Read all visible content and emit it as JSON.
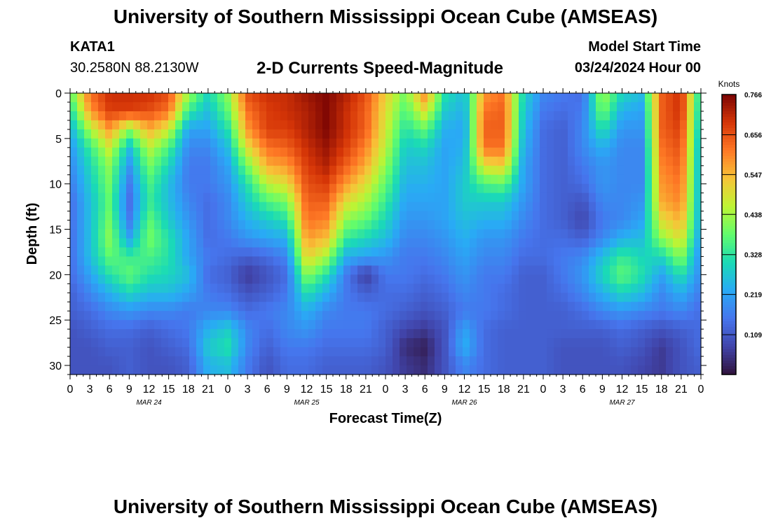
{
  "header": {
    "title": "University of Southern Mississippi Ocean Cube (AMSEAS)",
    "station_name": "KATA1",
    "station_coords": "30.2580N  88.2130W",
    "chart_title": "2-D Currents Speed-Magnitude",
    "start_label": "Model Start Time",
    "start_value": "03/24/2024 Hour 00"
  },
  "footer": {
    "title": "University of Southern Mississippi Ocean Cube (AMSEAS)"
  },
  "chart_data": {
    "type": "heatmap",
    "title": "2-D Currents Speed-Magnitude",
    "xlabel": "Forecast Time(Z)",
    "ylabel": "Depth (ft)",
    "x_range_hours": [
      0,
      96
    ],
    "x_tick_step_hours": 3,
    "x_tick_labels": [
      "0",
      "3",
      "6",
      "9",
      "12",
      "15",
      "18",
      "21",
      "0",
      "3",
      "6",
      "9",
      "12",
      "15",
      "18",
      "21",
      "0",
      "3",
      "6",
      "9",
      "12",
      "15",
      "18",
      "21",
      "0",
      "3",
      "6",
      "9",
      "12",
      "15",
      "18",
      "21",
      "0"
    ],
    "date_labels": [
      {
        "label": "MAR 24",
        "hour": 12
      },
      {
        "label": "MAR 25",
        "hour": 36
      },
      {
        "label": "MAR 26",
        "hour": 60
      },
      {
        "label": "MAR 27",
        "hour": 84
      }
    ],
    "ylim": [
      0,
      31
    ],
    "y_inverted": true,
    "y_tick_labels": [
      "0",
      "5",
      "10",
      "15",
      "20",
      "25",
      "30"
    ],
    "y_ticks": [
      0,
      5,
      10,
      15,
      20,
      25,
      30
    ],
    "colorbar": {
      "unit": "Knots",
      "ticks": [
        "0.766",
        "0.656",
        "0.547",
        "0.438",
        "0.328",
        "0.219",
        "0.109"
      ],
      "range": [
        0.0,
        0.766
      ],
      "colormap": "turbo"
    },
    "depths_ft": [
      0,
      2,
      4,
      6,
      8,
      10,
      12,
      14,
      16,
      18,
      20,
      22,
      24,
      26,
      28,
      30
    ],
    "hours": [
      0,
      3,
      6,
      9,
      12,
      15,
      18,
      21,
      24,
      27,
      30,
      33,
      36,
      39,
      42,
      45,
      48,
      51,
      54,
      57,
      60,
      63,
      66,
      69,
      72,
      75,
      78,
      81,
      84,
      87,
      90,
      93,
      96
    ],
    "speed_knots": [
      [
        0.38,
        0.62,
        0.7,
        0.7,
        0.7,
        0.66,
        0.44,
        0.3,
        0.42,
        0.66,
        0.7,
        0.7,
        0.74,
        0.76,
        0.72,
        0.66,
        0.52,
        0.4,
        0.6,
        0.32,
        0.26,
        0.58,
        0.62,
        0.3,
        0.18,
        0.16,
        0.14,
        0.44,
        0.3,
        0.26,
        0.64,
        0.7,
        0.28
      ],
      [
        0.3,
        0.58,
        0.68,
        0.68,
        0.66,
        0.62,
        0.34,
        0.26,
        0.38,
        0.62,
        0.68,
        0.7,
        0.72,
        0.76,
        0.7,
        0.64,
        0.5,
        0.36,
        0.5,
        0.28,
        0.24,
        0.62,
        0.64,
        0.28,
        0.16,
        0.14,
        0.16,
        0.4,
        0.24,
        0.22,
        0.64,
        0.7,
        0.26
      ],
      [
        0.24,
        0.44,
        0.58,
        0.42,
        0.56,
        0.48,
        0.22,
        0.22,
        0.32,
        0.58,
        0.68,
        0.68,
        0.72,
        0.76,
        0.7,
        0.64,
        0.48,
        0.32,
        0.38,
        0.24,
        0.22,
        0.64,
        0.64,
        0.26,
        0.14,
        0.12,
        0.18,
        0.32,
        0.2,
        0.2,
        0.64,
        0.68,
        0.24
      ],
      [
        0.2,
        0.34,
        0.48,
        0.26,
        0.46,
        0.36,
        0.18,
        0.18,
        0.26,
        0.5,
        0.62,
        0.64,
        0.7,
        0.74,
        0.68,
        0.6,
        0.46,
        0.28,
        0.3,
        0.22,
        0.24,
        0.62,
        0.62,
        0.24,
        0.14,
        0.12,
        0.18,
        0.24,
        0.18,
        0.18,
        0.62,
        0.66,
        0.22
      ],
      [
        0.18,
        0.3,
        0.42,
        0.2,
        0.4,
        0.3,
        0.16,
        0.16,
        0.22,
        0.4,
        0.56,
        0.58,
        0.68,
        0.72,
        0.64,
        0.56,
        0.42,
        0.26,
        0.26,
        0.22,
        0.26,
        0.5,
        0.52,
        0.22,
        0.14,
        0.12,
        0.16,
        0.2,
        0.18,
        0.18,
        0.6,
        0.64,
        0.22
      ],
      [
        0.16,
        0.28,
        0.4,
        0.16,
        0.36,
        0.26,
        0.16,
        0.16,
        0.2,
        0.32,
        0.46,
        0.5,
        0.66,
        0.68,
        0.58,
        0.5,
        0.38,
        0.24,
        0.24,
        0.22,
        0.28,
        0.36,
        0.38,
        0.22,
        0.14,
        0.12,
        0.14,
        0.2,
        0.18,
        0.18,
        0.58,
        0.62,
        0.22
      ],
      [
        0.14,
        0.26,
        0.38,
        0.14,
        0.34,
        0.26,
        0.18,
        0.14,
        0.18,
        0.28,
        0.36,
        0.4,
        0.64,
        0.64,
        0.5,
        0.44,
        0.34,
        0.22,
        0.22,
        0.22,
        0.28,
        0.28,
        0.28,
        0.2,
        0.14,
        0.12,
        0.1,
        0.18,
        0.18,
        0.2,
        0.56,
        0.6,
        0.22
      ],
      [
        0.14,
        0.26,
        0.4,
        0.16,
        0.38,
        0.28,
        0.2,
        0.14,
        0.18,
        0.24,
        0.28,
        0.32,
        0.62,
        0.6,
        0.42,
        0.38,
        0.3,
        0.2,
        0.2,
        0.22,
        0.26,
        0.24,
        0.24,
        0.18,
        0.14,
        0.12,
        0.08,
        0.16,
        0.18,
        0.22,
        0.5,
        0.56,
        0.22
      ],
      [
        0.14,
        0.26,
        0.42,
        0.22,
        0.4,
        0.32,
        0.22,
        0.14,
        0.16,
        0.2,
        0.22,
        0.24,
        0.58,
        0.54,
        0.34,
        0.3,
        0.26,
        0.18,
        0.18,
        0.2,
        0.24,
        0.2,
        0.2,
        0.16,
        0.14,
        0.14,
        0.12,
        0.18,
        0.24,
        0.26,
        0.42,
        0.5,
        0.2
      ],
      [
        0.14,
        0.26,
        0.38,
        0.34,
        0.36,
        0.32,
        0.22,
        0.16,
        0.14,
        0.12,
        0.14,
        0.18,
        0.52,
        0.44,
        0.24,
        0.22,
        0.2,
        0.16,
        0.16,
        0.18,
        0.22,
        0.18,
        0.18,
        0.14,
        0.14,
        0.16,
        0.18,
        0.26,
        0.34,
        0.3,
        0.3,
        0.42,
        0.18
      ],
      [
        0.14,
        0.22,
        0.32,
        0.38,
        0.32,
        0.3,
        0.26,
        0.14,
        0.12,
        0.06,
        0.1,
        0.14,
        0.42,
        0.32,
        0.16,
        0.06,
        0.16,
        0.16,
        0.14,
        0.16,
        0.2,
        0.16,
        0.16,
        0.12,
        0.12,
        0.16,
        0.2,
        0.3,
        0.38,
        0.32,
        0.22,
        0.32,
        0.18
      ],
      [
        0.12,
        0.18,
        0.24,
        0.3,
        0.26,
        0.26,
        0.22,
        0.16,
        0.14,
        0.1,
        0.12,
        0.16,
        0.32,
        0.24,
        0.16,
        0.12,
        0.14,
        0.14,
        0.12,
        0.14,
        0.18,
        0.16,
        0.14,
        0.12,
        0.12,
        0.14,
        0.18,
        0.24,
        0.3,
        0.26,
        0.18,
        0.24,
        0.16
      ],
      [
        0.12,
        0.14,
        0.18,
        0.2,
        0.18,
        0.18,
        0.16,
        0.18,
        0.18,
        0.14,
        0.16,
        0.18,
        0.24,
        0.18,
        0.16,
        0.16,
        0.14,
        0.12,
        0.1,
        0.12,
        0.16,
        0.16,
        0.14,
        0.12,
        0.12,
        0.12,
        0.14,
        0.18,
        0.2,
        0.18,
        0.16,
        0.18,
        0.14
      ],
      [
        0.1,
        0.12,
        0.14,
        0.14,
        0.12,
        0.14,
        0.16,
        0.24,
        0.28,
        0.18,
        0.14,
        0.18,
        0.2,
        0.16,
        0.16,
        0.16,
        0.12,
        0.08,
        0.06,
        0.1,
        0.22,
        0.14,
        0.12,
        0.12,
        0.12,
        0.12,
        0.12,
        0.12,
        0.14,
        0.12,
        0.1,
        0.12,
        0.14
      ],
      [
        0.1,
        0.1,
        0.12,
        0.12,
        0.1,
        0.12,
        0.14,
        0.28,
        0.32,
        0.18,
        0.12,
        0.16,
        0.16,
        0.14,
        0.14,
        0.14,
        0.12,
        0.04,
        0.02,
        0.1,
        0.24,
        0.14,
        0.12,
        0.12,
        0.12,
        0.1,
        0.1,
        0.1,
        0.12,
        0.1,
        0.06,
        0.1,
        0.14
      ],
      [
        0.1,
        0.1,
        0.1,
        0.12,
        0.1,
        0.1,
        0.12,
        0.24,
        0.26,
        0.16,
        0.1,
        0.14,
        0.14,
        0.12,
        0.12,
        0.12,
        0.1,
        0.06,
        0.04,
        0.1,
        0.18,
        0.14,
        0.12,
        0.12,
        0.12,
        0.1,
        0.1,
        0.1,
        0.1,
        0.08,
        0.06,
        0.1,
        0.12
      ]
    ]
  }
}
